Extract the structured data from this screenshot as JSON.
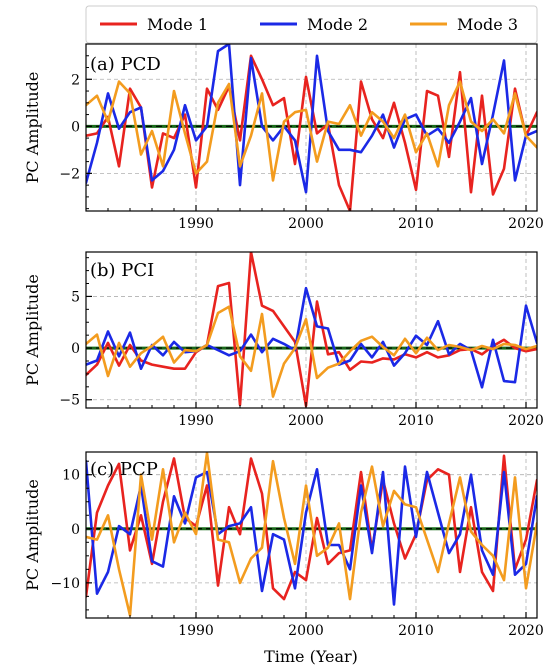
{
  "chart_data": {
    "type": "line",
    "xlabel": "Time (Year)",
    "ylabel": "PC Amplitude",
    "xlim": [
      1980,
      2021
    ],
    "x_ticks": [
      1990,
      2000,
      2010,
      2020
    ],
    "legend": {
      "placement": "top",
      "entries": [
        "Mode 1",
        "Mode 2",
        "Mode 3"
      ]
    },
    "series_colors": {
      "Mode 1": "#e8231f",
      "Mode 2": "#1b29e6",
      "Mode 3": "#f39c1f"
    },
    "zero_line_colors": [
      "#1a6b1a",
      "#000000"
    ],
    "grid": true,
    "panels": [
      {
        "title": "(a) PCD",
        "ylim": [
          -3.6,
          3.5
        ],
        "y_ticks": [
          -2,
          0,
          2
        ],
        "series": [
          {
            "name": "Mode 1",
            "x": [
              1980,
              1981,
              1982,
              1983,
              1984,
              1985,
              1986,
              1987,
              1988,
              1989,
              1990,
              1991,
              1992,
              1993,
              1994,
              1995,
              1996,
              1997,
              1998,
              1999,
              2000,
              2001,
              2002,
              2003,
              2004,
              2005,
              2006,
              2007,
              2008,
              2009,
              2010,
              2011,
              2012,
              2013,
              2014,
              2015,
              2016,
              2017,
              2018,
              2019,
              2020,
              2021
            ],
            "values": [
              -0.4,
              -0.3,
              0.4,
              -1.7,
              1.6,
              0.8,
              -2.6,
              -0.3,
              -0.5,
              0.5,
              -2.6,
              1.6,
              0.7,
              1.7,
              -0.6,
              3.0,
              2.0,
              0.9,
              1.2,
              -1.6,
              2.1,
              -0.3,
              0.1,
              -2.5,
              -3.6,
              1.9,
              0.3,
              -0.5,
              1.0,
              -0.7,
              -2.7,
              1.5,
              1.3,
              -1.3,
              2.3,
              -2.8,
              1.3,
              -2.9,
              -1.8,
              1.6,
              -0.4,
              0.6
            ]
          },
          {
            "name": "Mode 2",
            "x": [
              1980,
              1981,
              1982,
              1983,
              1984,
              1985,
              1986,
              1987,
              1988,
              1989,
              1990,
              1991,
              1992,
              1993,
              1994,
              1995,
              1996,
              1997,
              1998,
              1999,
              2000,
              2001,
              2002,
              2003,
              2004,
              2005,
              2006,
              2007,
              2008,
              2009,
              2010,
              2011,
              2012,
              2013,
              2014,
              2015,
              2016,
              2017,
              2018,
              2019,
              2020,
              2021
            ],
            "values": [
              -2.4,
              -0.7,
              1.4,
              -0.1,
              0.6,
              0.8,
              -2.3,
              -1.9,
              -1.0,
              0.9,
              -0.6,
              0.0,
              3.2,
              3.5,
              -2.5,
              2.9,
              0.0,
              -0.6,
              0.0,
              -0.6,
              -2.8,
              3.0,
              -0.2,
              -1.0,
              -1.0,
              -1.1,
              -0.4,
              0.5,
              -0.9,
              0.3,
              0.5,
              -0.4,
              -0.1,
              -0.7,
              0.2,
              1.2,
              -1.6,
              0.5,
              2.8,
              -2.3,
              -0.4,
              -0.2
            ]
          },
          {
            "name": "Mode 3",
            "x": [
              1980,
              1981,
              1982,
              1983,
              1984,
              1985,
              1986,
              1987,
              1988,
              1989,
              1990,
              1991,
              1992,
              1993,
              1994,
              1995,
              1996,
              1997,
              1998,
              1999,
              2000,
              2001,
              2002,
              2003,
              2004,
              2005,
              2006,
              2007,
              2008,
              2009,
              2010,
              2011,
              2012,
              2013,
              2014,
              2015,
              2016,
              2017,
              2018,
              2019,
              2020,
              2021
            ],
            "values": [
              0.9,
              1.3,
              0.2,
              1.9,
              1.4,
              -1.2,
              -0.2,
              -1.7,
              1.5,
              -0.3,
              -2.0,
              -1.5,
              1.0,
              1.8,
              -1.7,
              -0.4,
              1.4,
              -2.3,
              0.2,
              0.6,
              0.7,
              -1.5,
              0.2,
              0.1,
              0.9,
              -0.4,
              0.6,
              0.2,
              -0.5,
              0.5,
              -1.1,
              -0.3,
              -1.7,
              0.9,
              1.9,
              0.2,
              -0.2,
              0.3,
              -0.3,
              1.4,
              -0.4,
              -0.9
            ]
          }
        ]
      },
      {
        "title": "(b) PCI",
        "ylim": [
          -5.8,
          9.3
        ],
        "y_ticks": [
          -5,
          0,
          5
        ],
        "series": [
          {
            "name": "Mode 1",
            "x": [
              1980,
              1981,
              1982,
              1983,
              1984,
              1985,
              1986,
              1987,
              1988,
              1989,
              1990,
              1991,
              1992,
              1993,
              1994,
              1995,
              1996,
              1997,
              1998,
              1999,
              2000,
              2001,
              2002,
              2003,
              2004,
              2005,
              2006,
              2007,
              2008,
              2009,
              2010,
              2011,
              2012,
              2013,
              2014,
              2015,
              2016,
              2017,
              2018,
              2019,
              2020,
              2021
            ],
            "values": [
              -2.6,
              -1.6,
              0.5,
              -1.7,
              0.3,
              -1.2,
              -1.6,
              -1.8,
              -2.0,
              -2.0,
              -0.4,
              0.3,
              6.0,
              6.3,
              -5.5,
              9.3,
              4.1,
              3.6,
              2.1,
              0.6,
              -5.6,
              4.5,
              -0.6,
              -0.4,
              -2.1,
              -1.3,
              -1.4,
              -1.0,
              -1.1,
              -0.6,
              -0.9,
              -0.4,
              -0.9,
              -0.7,
              -0.2,
              -0.1,
              -0.6,
              0.2,
              0.8,
              0.0,
              -0.3,
              -0.1
            ]
          },
          {
            "name": "Mode 2",
            "x": [
              1980,
              1981,
              1982,
              1983,
              1984,
              1985,
              1986,
              1987,
              1988,
              1989,
              1990,
              1991,
              1992,
              1993,
              1994,
              1995,
              1996,
              1997,
              1998,
              1999,
              2000,
              2001,
              2002,
              2003,
              2004,
              2005,
              2006,
              2007,
              2008,
              2009,
              2010,
              2011,
              2012,
              2013,
              2014,
              2015,
              2016,
              2017,
              2018,
              2019,
              2020,
              2021
            ],
            "values": [
              -1.6,
              -1.2,
              1.6,
              -0.8,
              1.5,
              -2.0,
              0.3,
              -0.7,
              0.6,
              -0.4,
              -0.3,
              0.3,
              -0.2,
              -0.7,
              -0.3,
              1.3,
              -0.4,
              0.9,
              0.4,
              -0.2,
              5.8,
              2.1,
              1.9,
              -1.6,
              -1.2,
              0.4,
              -0.9,
              0.6,
              -1.7,
              -0.5,
              1.2,
              0.3,
              2.6,
              -0.6,
              0.4,
              -0.2,
              -3.8,
              0.8,
              -3.2,
              -3.3,
              4.1,
              0.5
            ]
          },
          {
            "name": "Mode 3",
            "x": [
              1980,
              1981,
              1982,
              1983,
              1984,
              1985,
              1986,
              1987,
              1988,
              1989,
              1990,
              1991,
              1992,
              1993,
              1994,
              1995,
              1996,
              1997,
              1998,
              1999,
              2000,
              2001,
              2002,
              2003,
              2004,
              2005,
              2006,
              2007,
              2008,
              2009,
              2010,
              2011,
              2012,
              2013,
              2014,
              2015,
              2016,
              2017,
              2018,
              2019,
              2020,
              2021
            ],
            "values": [
              0.4,
              1.3,
              -2.7,
              0.5,
              -1.8,
              -0.5,
              0.2,
              1.1,
              -1.4,
              -0.2,
              -0.3,
              0.3,
              3.4,
              4.0,
              -0.8,
              -2.2,
              3.3,
              -4.7,
              -1.5,
              0.0,
              2.8,
              -2.9,
              -1.9,
              -1.5,
              -0.3,
              0.7,
              1.1,
              0.1,
              -0.7,
              0.9,
              -0.5,
              1.0,
              -0.2,
              0.3,
              0.1,
              -0.2,
              0.2,
              -0.1,
              0.4,
              0.3,
              -0.1,
              0.2
            ]
          }
        ]
      },
      {
        "title": "(c) PCP",
        "ylim": [
          -16.5,
          14.2
        ],
        "y_ticks": [
          -10,
          0,
          10
        ],
        "series": [
          {
            "name": "Mode 1",
            "x": [
              1980,
              1981,
              1982,
              1983,
              1984,
              1985,
              1986,
              1987,
              1988,
              1989,
              1990,
              1991,
              1992,
              1993,
              1994,
              1995,
              1996,
              1997,
              1998,
              1999,
              2000,
              2001,
              2002,
              2003,
              2004,
              2005,
              2006,
              2007,
              2008,
              2009,
              2010,
              2011,
              2012,
              2013,
              2014,
              2015,
              2016,
              2017,
              2018,
              2019,
              2020,
              2021
            ],
            "values": [
              -12.5,
              3.0,
              8.0,
              12.0,
              -4.0,
              2.5,
              -6.5,
              5.0,
              13.0,
              2.0,
              0.5,
              8.0,
              -10.5,
              4.0,
              -1.0,
              13.0,
              6.5,
              -11.0,
              -13.0,
              -8.0,
              -9.5,
              2.0,
              -6.5,
              -4.5,
              -4.0,
              10.5,
              -4.0,
              9.0,
              1.0,
              -5.5,
              -1.0,
              9.0,
              11.0,
              10.0,
              -8.0,
              4.0,
              -8.0,
              -11.5,
              13.5,
              -7.5,
              -2.0,
              9.0
            ]
          },
          {
            "name": "Mode 2",
            "x": [
              1980,
              1981,
              1982,
              1983,
              1984,
              1985,
              1986,
              1987,
              1988,
              1989,
              1990,
              1991,
              1992,
              1993,
              1994,
              1995,
              1996,
              1997,
              1998,
              1999,
              2000,
              2001,
              2002,
              2003,
              2004,
              2005,
              2006,
              2007,
              2008,
              2009,
              2010,
              2011,
              2012,
              2013,
              2014,
              2015,
              2016,
              2017,
              2018,
              2019,
              2020,
              2021
            ],
            "values": [
              12.5,
              -12.0,
              -8.0,
              0.5,
              -1.0,
              8.0,
              -6.0,
              -7.0,
              6.0,
              1.0,
              9.5,
              10.5,
              -1.0,
              0.5,
              1.0,
              4.0,
              -11.5,
              -1.0,
              -2.0,
              -11.0,
              3.0,
              11.0,
              -3.0,
              -3.0,
              -7.5,
              8.0,
              -4.5,
              10.5,
              -14.0,
              11.5,
              -1.5,
              10.5,
              3.0,
              -4.5,
              -1.0,
              10.0,
              -4.0,
              -8.5,
              10.5,
              -8.5,
              -6.5,
              6.0
            ]
          },
          {
            "name": "Mode 3",
            "x": [
              1980,
              1981,
              1982,
              1983,
              1984,
              1985,
              1986,
              1987,
              1988,
              1989,
              1990,
              1991,
              1992,
              1993,
              1994,
              1995,
              1996,
              1997,
              1998,
              1999,
              2000,
              2001,
              2002,
              2003,
              2004,
              2005,
              2006,
              2007,
              2008,
              2009,
              2010,
              2011,
              2012,
              2013,
              2014,
              2015,
              2016,
              2017,
              2018,
              2019,
              2020,
              2021
            ],
            "values": [
              -1.5,
              -2.0,
              2.5,
              -7.5,
              -16.0,
              10.0,
              -2.0,
              11.0,
              -2.5,
              3.0,
              -1.0,
              14.0,
              -2.0,
              -2.5,
              -10.0,
              -5.5,
              -3.5,
              12.5,
              2.0,
              -6.5,
              8.0,
              -5.0,
              -3.5,
              1.0,
              -13.0,
              3.0,
              11.5,
              0.5,
              7.0,
              4.5,
              4.0,
              -2.0,
              -8.0,
              1.0,
              9.5,
              -0.5,
              -3.0,
              -5.0,
              -9.5,
              9.5,
              -11.0,
              1.0
            ]
          }
        ]
      }
    ]
  }
}
